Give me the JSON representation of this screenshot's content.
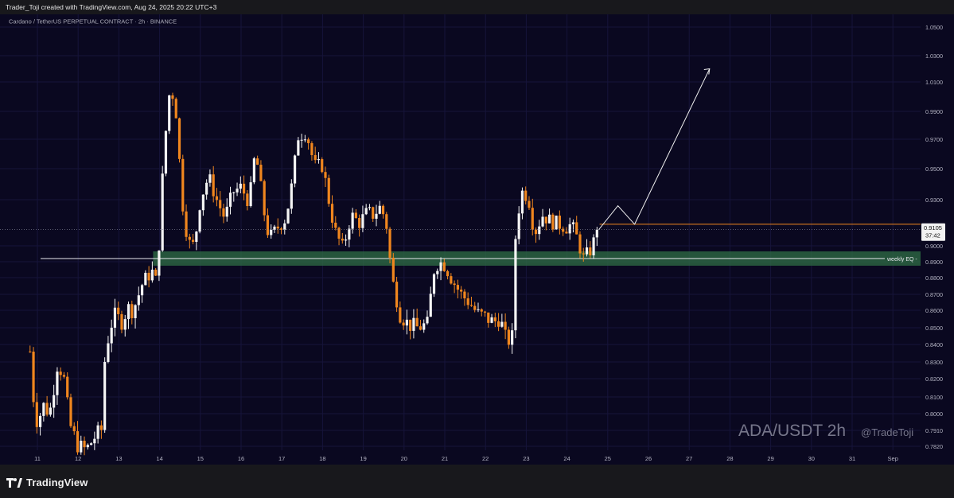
{
  "header": {
    "credit": "Trader_Toji created with TradingView.com, Aug 24, 2025 20:22 UTC+3"
  },
  "chart_data": {
    "type": "candlestick",
    "title": "Cardano / TetherUS PERPETUAL CONTRACT · 2h · BINANCE",
    "symbol_watermark": "ADA/USDT 2h",
    "author_watermark": "@TradeToji",
    "ylim": [
      0.775,
      1.055
    ],
    "y_ticks": [
      "1.0500",
      "1.0300",
      "1.0100",
      "0.9900",
      "0.9700",
      "0.9500",
      "0.9300",
      "0.9000",
      "0.8900",
      "0.8800",
      "0.8700",
      "0.8600",
      "0.8500",
      "0.8400",
      "0.8300",
      "0.8200",
      "0.8100",
      "0.8000",
      "0.7910",
      "0.7820"
    ],
    "x_ticks": [
      "11",
      "12",
      "13",
      "14",
      "15",
      "16",
      "17",
      "18",
      "19",
      "20",
      "21",
      "22",
      "23",
      "24",
      "25",
      "26",
      "27",
      "28",
      "29",
      "30",
      "31",
      "Sep"
    ],
    "last_price": "0.9105",
    "countdown": "37:42",
    "zone_label": "weekly EQ",
    "weekly_eq_zone": [
      0.8875,
      0.8965
    ],
    "colors": {
      "background": "#0a0820",
      "up": "#f4f4f4",
      "down": "#f0861e",
      "zone": "#2f6e44",
      "grid": "#16143a"
    },
    "anchors": [
      {
        "d": 10.82,
        "p": 0.836
      },
      {
        "d": 10.9,
        "p": 0.81
      },
      {
        "d": 11.0,
        "p": 0.795
      },
      {
        "d": 11.15,
        "p": 0.805
      },
      {
        "d": 11.3,
        "p": 0.8
      },
      {
        "d": 11.5,
        "p": 0.83
      },
      {
        "d": 11.65,
        "p": 0.82
      },
      {
        "d": 11.8,
        "p": 0.794
      },
      {
        "d": 12.0,
        "p": 0.782
      },
      {
        "d": 12.2,
        "p": 0.78
      },
      {
        "d": 12.4,
        "p": 0.787
      },
      {
        "d": 12.6,
        "p": 0.792
      },
      {
        "d": 12.65,
        "p": 0.83
      },
      {
        "d": 12.78,
        "p": 0.85
      },
      {
        "d": 12.9,
        "p": 0.857
      },
      {
        "d": 13.1,
        "p": 0.853
      },
      {
        "d": 13.2,
        "p": 0.862
      },
      {
        "d": 13.35,
        "p": 0.86
      },
      {
        "d": 13.6,
        "p": 0.878
      },
      {
        "d": 13.7,
        "p": 0.88
      },
      {
        "d": 13.8,
        "p": 0.885
      },
      {
        "d": 13.9,
        "p": 0.877
      },
      {
        "d": 14.0,
        "p": 0.905
      },
      {
        "d": 14.1,
        "p": 0.96
      },
      {
        "d": 14.25,
        "p": 1.005
      },
      {
        "d": 14.38,
        "p": 0.998
      },
      {
        "d": 14.55,
        "p": 0.93
      },
      {
        "d": 14.7,
        "p": 0.902
      },
      {
        "d": 14.85,
        "p": 0.9
      },
      {
        "d": 15.0,
        "p": 0.93
      },
      {
        "d": 15.2,
        "p": 0.945
      },
      {
        "d": 15.4,
        "p": 0.93
      },
      {
        "d": 15.6,
        "p": 0.918
      },
      {
        "d": 15.8,
        "p": 0.935
      },
      {
        "d": 16.0,
        "p": 0.938
      },
      {
        "d": 16.2,
        "p": 0.928
      },
      {
        "d": 16.35,
        "p": 0.962
      },
      {
        "d": 16.5,
        "p": 0.935
      },
      {
        "d": 16.6,
        "p": 0.915
      },
      {
        "d": 16.7,
        "p": 0.905
      },
      {
        "d": 16.9,
        "p": 0.912
      },
      {
        "d": 17.1,
        "p": 0.918
      },
      {
        "d": 17.25,
        "p": 0.94
      },
      {
        "d": 17.4,
        "p": 0.972
      },
      {
        "d": 17.6,
        "p": 0.975
      },
      {
        "d": 17.8,
        "p": 0.952
      },
      {
        "d": 18.0,
        "p": 0.952
      },
      {
        "d": 18.15,
        "p": 0.93
      },
      {
        "d": 18.3,
        "p": 0.91
      },
      {
        "d": 18.5,
        "p": 0.898
      },
      {
        "d": 18.7,
        "p": 0.92
      },
      {
        "d": 18.9,
        "p": 0.915
      },
      {
        "d": 19.1,
        "p": 0.922
      },
      {
        "d": 19.25,
        "p": 0.92
      },
      {
        "d": 19.4,
        "p": 0.925
      },
      {
        "d": 19.55,
        "p": 0.918
      },
      {
        "d": 19.7,
        "p": 0.88
      },
      {
        "d": 19.9,
        "p": 0.858
      },
      {
        "d": 20.1,
        "p": 0.852
      },
      {
        "d": 20.3,
        "p": 0.85
      },
      {
        "d": 20.6,
        "p": 0.852
      },
      {
        "d": 20.7,
        "p": 0.883
      },
      {
        "d": 20.85,
        "p": 0.89
      },
      {
        "d": 21.0,
        "p": 0.888
      },
      {
        "d": 21.2,
        "p": 0.878
      },
      {
        "d": 21.4,
        "p": 0.87
      },
      {
        "d": 21.6,
        "p": 0.865
      },
      {
        "d": 21.8,
        "p": 0.858
      },
      {
        "d": 22.0,
        "p": 0.856
      },
      {
        "d": 22.2,
        "p": 0.853
      },
      {
        "d": 22.35,
        "p": 0.856
      },
      {
        "d": 22.5,
        "p": 0.843
      },
      {
        "d": 22.65,
        "p": 0.842
      },
      {
        "d": 22.75,
        "p": 0.915
      },
      {
        "d": 22.9,
        "p": 0.935
      },
      {
        "d": 23.05,
        "p": 0.932
      },
      {
        "d": 23.2,
        "p": 0.908
      },
      {
        "d": 23.4,
        "p": 0.92
      },
      {
        "d": 23.6,
        "p": 0.916
      },
      {
        "d": 23.8,
        "p": 0.914
      },
      {
        "d": 24.0,
        "p": 0.912
      },
      {
        "d": 24.1,
        "p": 0.914
      },
      {
        "d": 24.25,
        "p": 0.905
      },
      {
        "d": 24.4,
        "p": 0.892
      },
      {
        "d": 24.55,
        "p": 0.896
      },
      {
        "d": 24.78,
        "p": 0.9105
      }
    ]
  },
  "footer": {
    "brand": "TradingView"
  }
}
